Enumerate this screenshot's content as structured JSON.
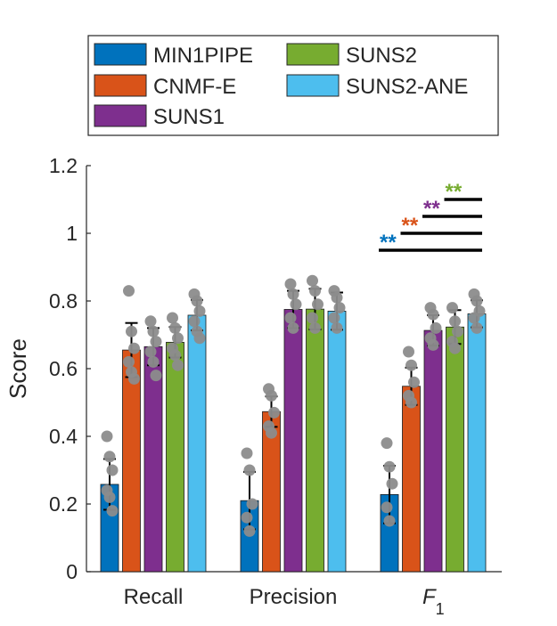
{
  "chart_data": {
    "type": "bar",
    "categories": [
      "Recall",
      "Precision",
      "F"
    ],
    "category_subscript": [
      "",
      "",
      "1"
    ],
    "series": [
      {
        "name": "MIN1PIPE",
        "color": "#0072BD",
        "values": [
          0.258,
          0.21,
          0.228
        ],
        "errors": [
          0.075,
          0.085,
          0.085
        ],
        "points": [
          [
            0.4,
            0.34,
            0.3,
            0.24,
            0.22,
            0.18
          ],
          [
            0.35,
            0.3,
            0.2,
            0.16,
            0.12
          ],
          [
            0.38,
            0.31,
            0.26,
            0.19,
            0.15
          ]
        ]
      },
      {
        "name": "CNMF-E",
        "color": "#D95319",
        "values": [
          0.655,
          0.473,
          0.548
        ],
        "errors": [
          0.08,
          0.045,
          0.055
        ],
        "points": [
          [
            0.83,
            0.71,
            0.66,
            0.62,
            0.59,
            0.57
          ],
          [
            0.54,
            0.52,
            0.47,
            0.43,
            0.41
          ],
          [
            0.65,
            0.61,
            0.56,
            0.52,
            0.5
          ]
        ]
      },
      {
        "name": "SUNS1",
        "color": "#7E2F8E",
        "values": [
          0.665,
          0.775,
          0.713
        ],
        "errors": [
          0.055,
          0.055,
          0.045
        ],
        "points": [
          [
            0.74,
            0.71,
            0.68,
            0.65,
            0.62,
            0.58
          ],
          [
            0.85,
            0.82,
            0.79,
            0.75,
            0.72
          ],
          [
            0.78,
            0.76,
            0.72,
            0.69,
            0.67
          ]
        ]
      },
      {
        "name": "SUNS2",
        "color": "#77AC30",
        "values": [
          0.678,
          0.776,
          0.723
        ],
        "errors": [
          0.045,
          0.06,
          0.05
        ],
        "points": [
          [
            0.75,
            0.72,
            0.69,
            0.66,
            0.64,
            0.61
          ],
          [
            0.86,
            0.83,
            0.79,
            0.75,
            0.72
          ],
          [
            0.78,
            0.74,
            0.71,
            0.68,
            0.66
          ]
        ]
      },
      {
        "name": "SUNS2-ANE",
        "color": "#4DBEEE",
        "values": [
          0.758,
          0.77,
          0.762
        ],
        "errors": [
          0.045,
          0.055,
          0.04
        ],
        "points": [
          [
            0.82,
            0.8,
            0.77,
            0.74,
            0.71,
            0.69
          ],
          [
            0.83,
            0.81,
            0.78,
            0.75,
            0.72
          ],
          [
            0.82,
            0.8,
            0.77,
            0.75,
            0.72
          ]
        ]
      }
    ],
    "ylabel": "Score",
    "xlabel": "",
    "ylim": [
      0,
      1.2
    ],
    "yticks": [
      "0",
      "0.2",
      "0.4",
      "0.6",
      "0.8",
      "1",
      "1.2"
    ],
    "ytick_values": [
      0,
      0.2,
      0.4,
      0.6,
      0.8,
      1.0,
      1.2
    ],
    "legend_position": "top (outside plot, boxed)",
    "grid": false,
    "significance": [
      {
        "label": "**",
        "color": "#0072BD",
        "y": 0.95,
        "series_from": 0,
        "series_to": 4
      },
      {
        "label": "**",
        "color": "#D95319",
        "y": 1.0,
        "series_from": 1,
        "series_to": 4
      },
      {
        "label": "**",
        "color": "#7E2F8E",
        "y": 1.05,
        "series_from": 2,
        "series_to": 4
      },
      {
        "label": "**",
        "color": "#77AC30",
        "y": 1.1,
        "series_from": 3,
        "series_to": 4
      }
    ],
    "significance_category": 2,
    "point_color": "#8C8C8C"
  }
}
